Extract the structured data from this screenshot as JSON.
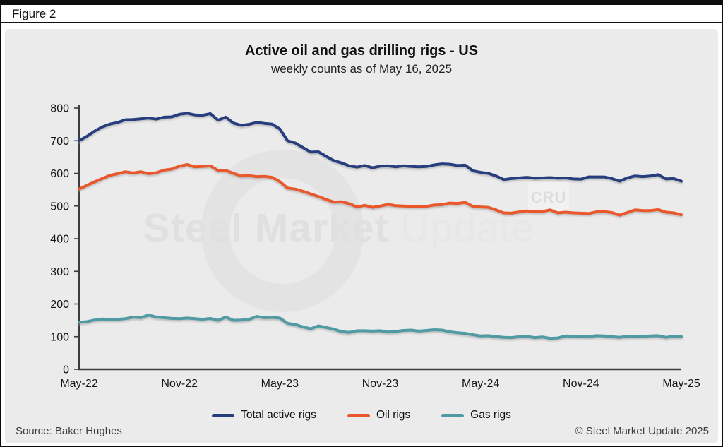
{
  "figure_label": "Figure 2",
  "watermark": {
    "text_bold": "Steel Market",
    "text_light": "Update",
    "badge": "CRU"
  },
  "footer": {
    "source": "Source: Baker Hughes",
    "copyright": "© Steel Market Update 2025"
  },
  "colors": {
    "total": "#253e7e",
    "oil": "#e8582c",
    "gas": "#4f9aa3",
    "panel_bg": "#ebebeb",
    "axis": "#3d3d3d"
  },
  "chart_data": {
    "type": "line",
    "title": "Active oil and gas drilling rigs - US",
    "subtitle": "weekly counts as of May 16, 2025",
    "x_tick_labels": [
      "May-22",
      "Nov-22",
      "May-23",
      "Nov-23",
      "May-24",
      "Nov-24",
      "May-25"
    ],
    "y_ticks": [
      0,
      100,
      200,
      300,
      400,
      500,
      600,
      700,
      800
    ],
    "ylim": [
      0,
      800
    ],
    "grid": false,
    "legend_position": "bottom",
    "sampling": "biweekly points from May-2022 to May-16-2025",
    "series": [
      {
        "name": "Total active rigs",
        "color": "#253e7e",
        "values": [
          700,
          713,
          729,
          742,
          751,
          756,
          764,
          765,
          767,
          769,
          766,
          772,
          773,
          781,
          784,
          779,
          778,
          783,
          763,
          772,
          754,
          747,
          750,
          756,
          753,
          751,
          736,
          700,
          693,
          679,
          665,
          666,
          652,
          639,
          632,
          623,
          619,
          624,
          617,
          622,
          623,
          620,
          623,
          621,
          620,
          621,
          626,
          629,
          628,
          624,
          625,
          608,
          603,
          600,
          592,
          581,
          584,
          586,
          588,
          585,
          586,
          587,
          585,
          586,
          583,
          582,
          589,
          589,
          589,
          584,
          576,
          586,
          592,
          590,
          592,
          596,
          583,
          584,
          576
        ]
      },
      {
        "name": "Oil rigs",
        "color": "#e8582c",
        "values": [
          552,
          563,
          574,
          584,
          594,
          599,
          605,
          601,
          605,
          599,
          602,
          610,
          613,
          622,
          627,
          620,
          621,
          623,
          609,
          609,
          600,
          592,
          593,
          590,
          591,
          588,
          575,
          555,
          552,
          545,
          537,
          529,
          520,
          512,
          513,
          507,
          497,
          502,
          496,
          500,
          505,
          501,
          500,
          499,
          499,
          499,
          503,
          504,
          509,
          508,
          511,
          499,
          497,
          496,
          488,
          479,
          478,
          482,
          485,
          483,
          483,
          488,
          479,
          481,
          479,
          478,
          477,
          482,
          483,
          480,
          472,
          480,
          488,
          486,
          486,
          489,
          481,
          479,
          473
        ]
      },
      {
        "name": "Gas rigs",
        "color": "#4f9aa3",
        "values": [
          144,
          146,
          151,
          154,
          153,
          153,
          155,
          160,
          158,
          166,
          160,
          158,
          156,
          155,
          157,
          155,
          153,
          156,
          150,
          160,
          150,
          151,
          153,
          162,
          158,
          159,
          157,
          141,
          137,
          130,
          124,
          133,
          128,
          123,
          115,
          113,
          118,
          118,
          117,
          118,
          114,
          116,
          119,
          120,
          117,
          119,
          121,
          120,
          115,
          112,
          110,
          106,
          102,
          103,
          100,
          98,
          97,
          100,
          101,
          97,
          99,
          95,
          96,
          102,
          101,
          101,
          100,
          103,
          102,
          100,
          98,
          101,
          101,
          101,
          102,
          103,
          98,
          101,
          100
        ]
      }
    ]
  }
}
